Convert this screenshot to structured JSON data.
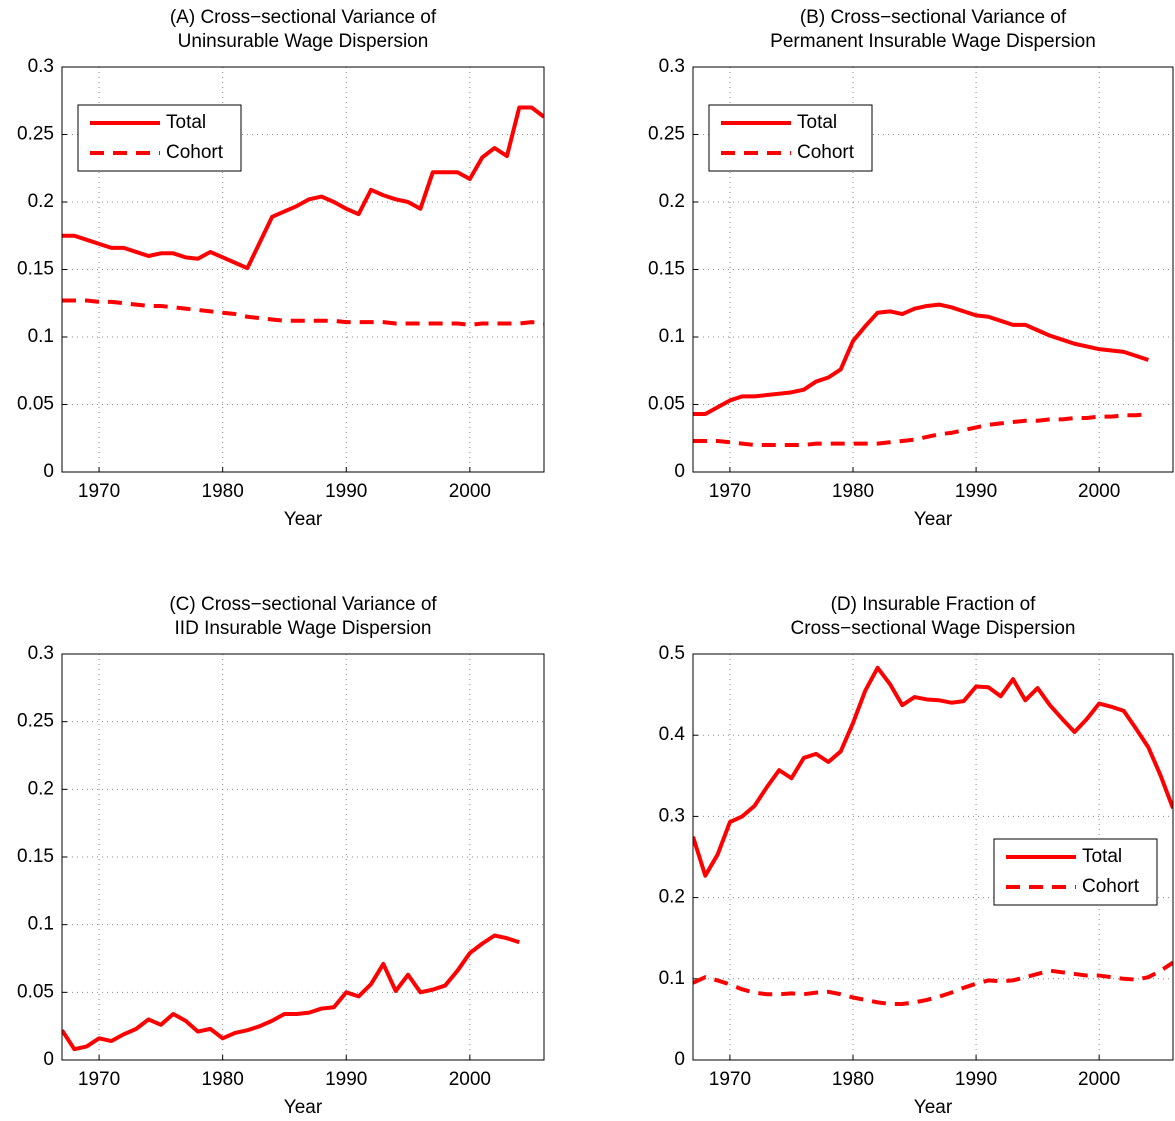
{
  "chart_data": [
    {
      "type": "line",
      "title": [
        "(A) Cross−sectional Variance of",
        "Uninsurable Wage Dispersion"
      ],
      "xlabel": "Year",
      "x": [
        1967,
        1968,
        1969,
        1970,
        1971,
        1972,
        1973,
        1974,
        1975,
        1976,
        1977,
        1978,
        1979,
        1980,
        1981,
        1982,
        1983,
        1984,
        1985,
        1986,
        1987,
        1988,
        1989,
        1990,
        1991,
        1992,
        1993,
        1994,
        1995,
        1996,
        1997,
        1998,
        1999,
        2000,
        2001,
        2002,
        2003,
        2004,
        2005,
        2006
      ],
      "series": [
        {
          "name": "Total",
          "color": "#ff0000",
          "linestyle": "solid",
          "values": [
            0.175,
            0.175,
            0.172,
            0.169,
            0.166,
            0.166,
            0.163,
            0.16,
            0.162,
            0.162,
            0.159,
            0.158,
            0.163,
            0.159,
            0.155,
            0.151,
            0.17,
            0.189,
            0.193,
            0.197,
            0.202,
            0.204,
            0.2,
            0.195,
            0.191,
            0.209,
            0.205,
            0.202,
            0.2,
            0.195,
            0.222,
            0.222,
            0.222,
            0.217,
            0.233,
            0.24,
            0.234,
            0.27,
            0.27,
            0.263
          ]
        },
        {
          "name": "Cohort",
          "color": "#ff0000",
          "linestyle": "dashed",
          "values": [
            0.127,
            0.127,
            0.127,
            0.126,
            0.126,
            0.125,
            0.124,
            0.123,
            0.123,
            0.122,
            0.121,
            0.12,
            0.119,
            0.118,
            0.117,
            0.115,
            0.114,
            0.113,
            0.112,
            0.112,
            0.112,
            0.112,
            0.112,
            0.111,
            0.111,
            0.111,
            0.111,
            0.11,
            0.11,
            0.11,
            0.11,
            0.11,
            0.11,
            0.109,
            0.11,
            0.11,
            0.11,
            0.11,
            0.111,
            0.11
          ]
        }
      ],
      "xlim": [
        1967,
        2006
      ],
      "xticks": [
        1970,
        1980,
        1990,
        2000
      ],
      "ylim": [
        0,
        0.3
      ],
      "yticks": [
        0,
        0.05,
        0.1,
        0.15,
        0.2,
        0.25,
        0.3
      ],
      "grid": true,
      "legend": "upper left"
    },
    {
      "type": "line",
      "title": [
        "(B) Cross−sectional Variance of",
        "Permanent Insurable Wage Dispersion"
      ],
      "xlabel": "Year",
      "x": [
        1967,
        1968,
        1969,
        1970,
        1971,
        1972,
        1973,
        1974,
        1975,
        1976,
        1977,
        1978,
        1979,
        1980,
        1981,
        1982,
        1983,
        1984,
        1985,
        1986,
        1987,
        1988,
        1989,
        1990,
        1991,
        1992,
        1993,
        1994,
        1995,
        1996,
        1997,
        1998,
        1999,
        2000,
        2001,
        2002,
        2003,
        2004
      ],
      "series": [
        {
          "name": "Total",
          "color": "#ff0000",
          "linestyle": "solid",
          "values": [
            0.043,
            0.043,
            0.048,
            0.053,
            0.056,
            0.056,
            0.057,
            0.058,
            0.059,
            0.061,
            0.067,
            0.07,
            0.076,
            0.097,
            0.108,
            0.118,
            0.119,
            0.117,
            0.121,
            0.123,
            0.124,
            0.122,
            0.119,
            0.116,
            0.115,
            0.112,
            0.109,
            0.109,
            0.105,
            0.101,
            0.098,
            0.095,
            0.093,
            0.091,
            0.09,
            0.089,
            0.086,
            0.083
          ]
        },
        {
          "name": "Cohort",
          "color": "#ff0000",
          "linestyle": "dashed",
          "values": [
            0.023,
            0.023,
            0.023,
            0.022,
            0.021,
            0.02,
            0.02,
            0.02,
            0.02,
            0.02,
            0.021,
            0.021,
            0.021,
            0.021,
            0.021,
            0.021,
            0.022,
            0.023,
            0.024,
            0.026,
            0.028,
            0.029,
            0.031,
            0.033,
            0.035,
            0.036,
            0.037,
            0.038,
            0.038,
            0.039,
            0.039,
            0.04,
            0.04,
            0.041,
            0.041,
            0.042,
            0.042,
            0.043
          ]
        }
      ],
      "xlim": [
        1967,
        2006
      ],
      "xticks": [
        1970,
        1980,
        1990,
        2000
      ],
      "ylim": [
        0,
        0.3
      ],
      "yticks": [
        0,
        0.05,
        0.1,
        0.15,
        0.2,
        0.25,
        0.3
      ],
      "grid": true,
      "legend": "upper left"
    },
    {
      "type": "line",
      "title": [
        "(C) Cross−sectional Variance of",
        "IID Insurable Wage Dispersion"
      ],
      "xlabel": "Year",
      "x": [
        1967,
        1968,
        1969,
        1970,
        1971,
        1972,
        1973,
        1974,
        1975,
        1976,
        1977,
        1978,
        1979,
        1980,
        1981,
        1982,
        1983,
        1984,
        1985,
        1986,
        1987,
        1988,
        1989,
        1990,
        1991,
        1992,
        1993,
        1994,
        1995,
        1996,
        1997,
        1998,
        1999,
        2000,
        2001,
        2002,
        2003,
        2004
      ],
      "series": [
        {
          "color": "#ff0000",
          "linestyle": "solid",
          "values": [
            0.022,
            0.008,
            0.01,
            0.016,
            0.014,
            0.019,
            0.023,
            0.03,
            0.026,
            0.034,
            0.029,
            0.021,
            0.023,
            0.016,
            0.02,
            0.022,
            0.025,
            0.029,
            0.034,
            0.034,
            0.035,
            0.038,
            0.039,
            0.05,
            0.047,
            0.056,
            0.071,
            0.051,
            0.063,
            0.05,
            0.052,
            0.055,
            0.066,
            0.079,
            0.086,
            0.092,
            0.09,
            0.087
          ]
        }
      ],
      "xlim": [
        1967,
        2006
      ],
      "xticks": [
        1970,
        1980,
        1990,
        2000
      ],
      "ylim": [
        0,
        0.3
      ],
      "yticks": [
        0,
        0.05,
        0.1,
        0.15,
        0.2,
        0.25,
        0.3
      ],
      "grid": true
    },
    {
      "type": "line",
      "title": [
        "(D) Insurable Fraction of",
        "Cross−sectional Wage Dispersion"
      ],
      "xlabel": "Year",
      "x": [
        1967,
        1968,
        1969,
        1970,
        1971,
        1972,
        1973,
        1974,
        1975,
        1976,
        1977,
        1978,
        1979,
        1980,
        1981,
        1982,
        1983,
        1984,
        1985,
        1986,
        1987,
        1988,
        1989,
        1990,
        1991,
        1992,
        1993,
        1994,
        1995,
        1996,
        1997,
        1998,
        1999,
        2000,
        2001,
        2002,
        2003,
        2004,
        2005,
        2006
      ],
      "series": [
        {
          "name": "Total",
          "color": "#ff0000",
          "linestyle": "solid",
          "values": [
            0.275,
            0.227,
            0.253,
            0.293,
            0.3,
            0.313,
            0.336,
            0.357,
            0.347,
            0.372,
            0.377,
            0.367,
            0.38,
            0.415,
            0.455,
            0.483,
            0.463,
            0.437,
            0.447,
            0.444,
            0.443,
            0.44,
            0.442,
            0.46,
            0.459,
            0.448,
            0.469,
            0.443,
            0.458,
            0.437,
            0.42,
            0.404,
            0.42,
            0.439,
            0.435,
            0.43,
            0.408,
            0.385,
            0.35,
            0.31
          ]
        },
        {
          "name": "Cohort",
          "color": "#ff0000",
          "linestyle": "dashed",
          "values": [
            0.095,
            0.102,
            0.098,
            0.093,
            0.087,
            0.083,
            0.081,
            0.081,
            0.082,
            0.081,
            0.083,
            0.084,
            0.081,
            0.077,
            0.074,
            0.071,
            0.069,
            0.069,
            0.071,
            0.074,
            0.078,
            0.083,
            0.089,
            0.094,
            0.098,
            0.097,
            0.098,
            0.102,
            0.106,
            0.11,
            0.108,
            0.106,
            0.104,
            0.104,
            0.102,
            0.1,
            0.099,
            0.102,
            0.11,
            0.12
          ]
        }
      ],
      "xlim": [
        1967,
        2006
      ],
      "xticks": [
        1970,
        1980,
        1990,
        2000
      ],
      "ylim": [
        0,
        0.5
      ],
      "yticks": [
        0,
        0.1,
        0.2,
        0.3,
        0.4,
        0.5
      ],
      "grid": true,
      "legend": "center right"
    }
  ]
}
